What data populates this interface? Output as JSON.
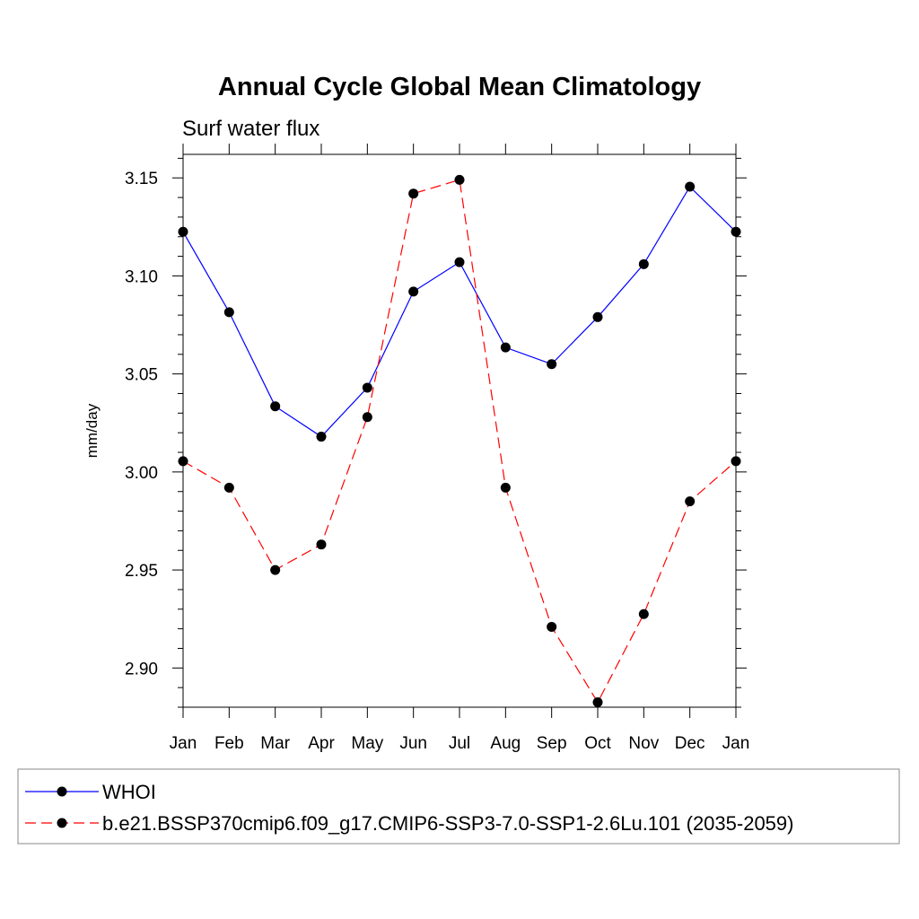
{
  "chart_data": {
    "type": "line",
    "title": "Annual Cycle Global Mean Climatology",
    "subtitle": "Surf water flux",
    "xlabel": "",
    "ylabel": "mm/day",
    "categories": [
      "Jan",
      "Feb",
      "Mar",
      "Apr",
      "May",
      "Jun",
      "Jul",
      "Aug",
      "Sep",
      "Oct",
      "Nov",
      "Dec",
      "Jan"
    ],
    "ylim": [
      2.88,
      3.162
    ],
    "yticks": [
      2.9,
      2.95,
      3.0,
      3.05,
      3.1,
      3.15
    ],
    "ytick_labels": [
      "2.90",
      "2.95",
      "3.00",
      "3.05",
      "3.10",
      "3.15"
    ],
    "grid": false,
    "legend_position": "bottom",
    "series": [
      {
        "name": "WHOI",
        "color": "#0000ff",
        "dash": "solid",
        "values": [
          3.1225,
          3.0815,
          3.0335,
          3.018,
          3.043,
          3.092,
          3.107,
          3.0635,
          3.055,
          3.079,
          3.106,
          3.1455,
          3.1225
        ]
      },
      {
        "name": "b.e21.BSSP370cmip6.f09_g17.CMIP6-SSP3-7.0-SSP1-2.6Lu.101 (2035-2059)",
        "color": "#ff0000",
        "dash": "dashed",
        "values": [
          3.0055,
          2.992,
          2.95,
          2.963,
          3.028,
          3.142,
          3.149,
          2.992,
          2.921,
          2.8825,
          2.9275,
          2.985,
          3.0055
        ]
      }
    ],
    "marker": "filled-circle",
    "marker_color": "#000000"
  }
}
